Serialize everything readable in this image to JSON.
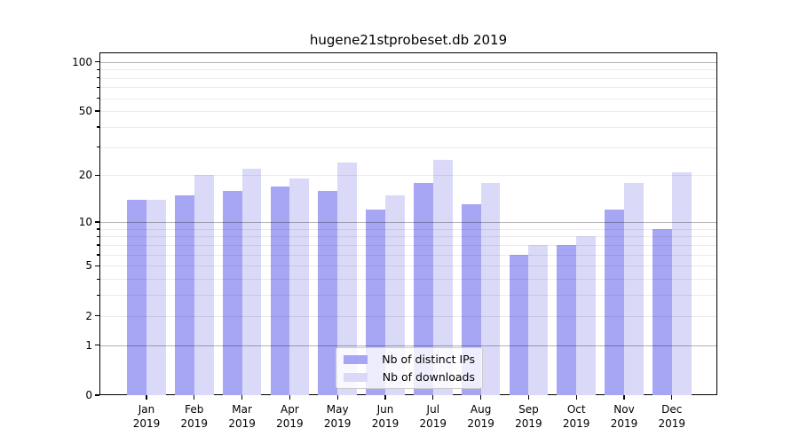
{
  "chart_data": {
    "type": "bar",
    "title": "hugene21stprobeset.db 2019",
    "categories": [
      "Jan",
      "Feb",
      "Mar",
      "Apr",
      "May",
      "Jun",
      "Jul",
      "Aug",
      "Sep",
      "Oct",
      "Nov",
      "Dec"
    ],
    "category_year": "2019",
    "series": [
      {
        "name": "Nb of distinct IPs",
        "color": "#a6a6f5",
        "values": [
          14,
          15,
          16,
          17,
          16,
          12,
          18,
          13,
          6,
          7,
          12,
          9
        ]
      },
      {
        "name": "Nb of downloads",
        "color": "#dadaf8",
        "values": [
          14,
          20,
          22,
          19,
          24,
          15,
          25,
          18,
          7,
          8,
          18,
          21
        ]
      }
    ],
    "xlabel": "",
    "ylabel": "",
    "yscale": "log10(1+x)",
    "ylim": [
      0,
      114
    ],
    "yticks_labeled": [
      100,
      50,
      20,
      10,
      5,
      2,
      1,
      0
    ],
    "ygrid_major": [
      100,
      10,
      1
    ],
    "ygrid_minor": [
      90,
      80,
      70,
      60,
      50,
      40,
      30,
      20,
      9,
      8,
      7,
      6,
      5,
      4,
      3,
      2
    ],
    "grid": true,
    "legend_position": "bottom-center"
  },
  "colors": {
    "background": "#ffffff",
    "axis": "#000000",
    "grid_major": "rgba(0,0,0,0.30)",
    "grid_minor": "rgba(0,0,0,0.08)",
    "legend_border": "#cccccc",
    "legend_background": "rgba(255,255,255,0.8)"
  }
}
